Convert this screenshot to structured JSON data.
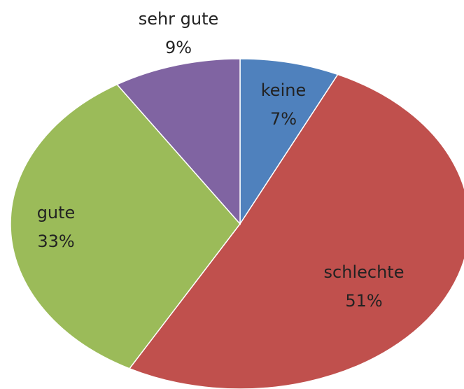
{
  "chart_data": {
    "type": "pie",
    "categories": [
      "keine",
      "schlechte",
      "gute",
      "sehr gute"
    ],
    "values": [
      7,
      51,
      33,
      9
    ],
    "value_labels": [
      "7%",
      "51%",
      "33%",
      "9%"
    ],
    "colors": [
      "#4f81bd",
      "#c0504d",
      "#9bbb59",
      "#8064a2"
    ]
  }
}
